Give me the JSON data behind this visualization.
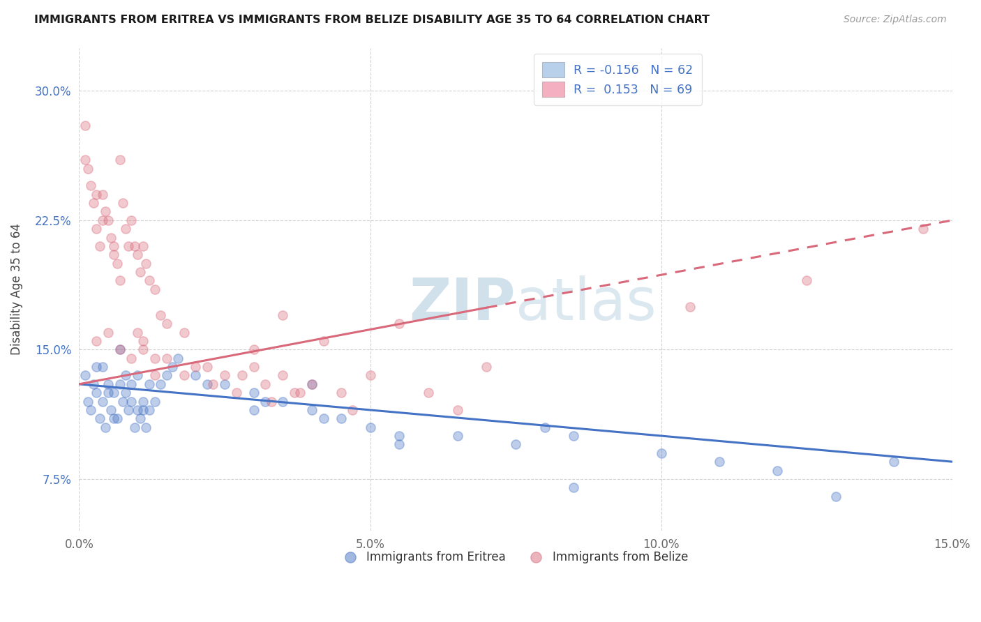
{
  "title": "IMMIGRANTS FROM ERITREA VS IMMIGRANTS FROM BELIZE DISABILITY AGE 35 TO 64 CORRELATION CHART",
  "source": "Source: ZipAtlas.com",
  "xlabel_vals": [
    0.0,
    5.0,
    10.0,
    15.0
  ],
  "ylabel_vals": [
    7.5,
    15.0,
    22.5,
    30.0
  ],
  "xmin": 0.0,
  "xmax": 15.0,
  "ymin": 4.5,
  "ymax": 32.5,
  "ylabel": "Disability Age 35 to 64",
  "legend1_label": "R = -0.156   N = 62",
  "legend2_label": "R =  0.153   N = 69",
  "legend1_color_fill": "#b8d0ea",
  "legend2_color_fill": "#f4afc0",
  "line1_color": "#4472c4",
  "line2_color": "#d9697a",
  "scatter1_alpha": 0.35,
  "scatter2_alpha": 0.35,
  "scatter_size": 90,
  "watermark_color": "#d8e8f0",
  "title_color": "#1a1a1a",
  "source_color": "#999999",
  "ylabel_color": "#444444",
  "tick_color": "#666666",
  "ytick_color": "#4472c4",
  "grid_color": "#cccccc",
  "background": "#ffffff",
  "blue_line_y0": 13.0,
  "blue_line_y1": 8.5,
  "pink_line_y0": 13.0,
  "pink_line_y1": 22.5,
  "blue_x": [
    0.1,
    0.15,
    0.2,
    0.25,
    0.3,
    0.35,
    0.4,
    0.45,
    0.5,
    0.55,
    0.6,
    0.65,
    0.7,
    0.75,
    0.8,
    0.85,
    0.9,
    0.95,
    1.0,
    1.05,
    1.1,
    1.15,
    1.2,
    1.3,
    1.4,
    1.5,
    1.6,
    1.7,
    0.3,
    0.5,
    0.7,
    0.9,
    1.1,
    0.4,
    0.6,
    0.8,
    1.0,
    1.2,
    2.0,
    2.5,
    3.0,
    3.5,
    4.0,
    4.5,
    5.0,
    5.5,
    2.2,
    3.2,
    4.2,
    3.0,
    4.0,
    6.5,
    7.5,
    8.5,
    10.0,
    11.0,
    12.0,
    14.0,
    5.5,
    8.0,
    8.5,
    13.0
  ],
  "blue_y": [
    13.5,
    12.0,
    11.5,
    13.0,
    12.5,
    11.0,
    14.0,
    10.5,
    13.0,
    11.5,
    12.5,
    11.0,
    13.0,
    12.0,
    13.5,
    11.5,
    12.0,
    10.5,
    13.5,
    11.0,
    12.0,
    10.5,
    11.5,
    12.0,
    13.0,
    13.5,
    14.0,
    14.5,
    14.0,
    12.5,
    15.0,
    13.0,
    11.5,
    12.0,
    11.0,
    12.5,
    11.5,
    13.0,
    13.5,
    13.0,
    12.5,
    12.0,
    11.5,
    11.0,
    10.5,
    10.0,
    13.0,
    12.0,
    11.0,
    11.5,
    13.0,
    10.0,
    9.5,
    10.0,
    9.0,
    8.5,
    8.0,
    8.5,
    9.5,
    10.5,
    7.0,
    6.5
  ],
  "pink_x": [
    0.1,
    0.15,
    0.2,
    0.25,
    0.3,
    0.35,
    0.4,
    0.45,
    0.5,
    0.55,
    0.6,
    0.65,
    0.7,
    0.75,
    0.8,
    0.85,
    0.9,
    0.95,
    1.0,
    1.05,
    1.1,
    1.15,
    1.2,
    1.3,
    1.4,
    1.5,
    0.3,
    0.5,
    0.7,
    0.9,
    1.1,
    1.3,
    2.0,
    2.5,
    3.0,
    3.5,
    4.0,
    4.5,
    2.2,
    2.8,
    3.2,
    3.8,
    4.2,
    1.5,
    1.8,
    2.3,
    2.7,
    3.3,
    3.7,
    4.7,
    3.0,
    5.0,
    6.0,
    6.5,
    7.0,
    3.5,
    5.5,
    10.5,
    12.5,
    14.5,
    0.1,
    0.3,
    0.4,
    0.6,
    0.7,
    1.0,
    1.1,
    1.3,
    1.8
  ],
  "pink_y": [
    28.0,
    25.5,
    24.5,
    23.5,
    22.0,
    21.0,
    24.0,
    23.0,
    22.5,
    21.5,
    20.5,
    20.0,
    26.0,
    23.5,
    22.0,
    21.0,
    22.5,
    21.0,
    20.5,
    19.5,
    21.0,
    20.0,
    19.0,
    18.5,
    17.0,
    16.5,
    15.5,
    16.0,
    15.0,
    14.5,
    15.5,
    14.5,
    14.0,
    13.5,
    14.0,
    13.5,
    13.0,
    12.5,
    14.0,
    13.5,
    13.0,
    12.5,
    15.5,
    14.5,
    13.5,
    13.0,
    12.5,
    12.0,
    12.5,
    11.5,
    15.0,
    13.5,
    12.5,
    11.5,
    14.0,
    17.0,
    16.5,
    17.5,
    19.0,
    22.0,
    26.0,
    24.0,
    22.5,
    21.0,
    19.0,
    16.0,
    15.0,
    13.5,
    16.0
  ]
}
